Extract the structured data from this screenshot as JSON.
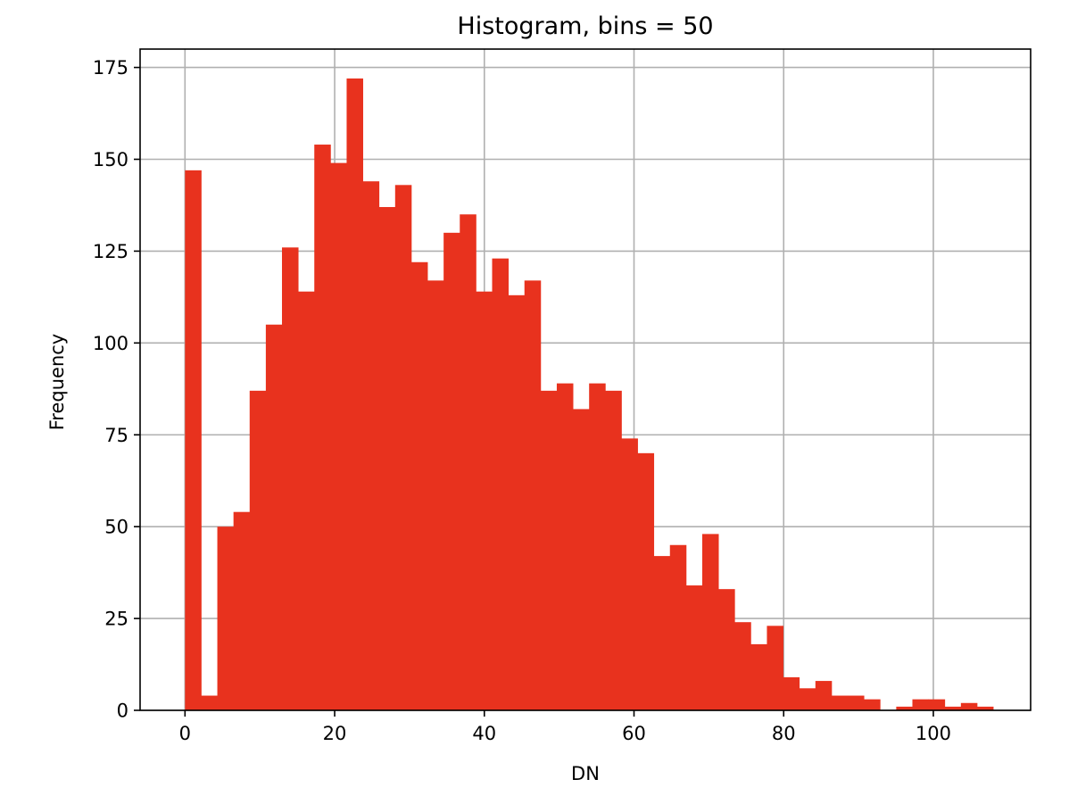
{
  "chart_data": {
    "type": "bar",
    "title": "Histogram, bins = 50",
    "xlabel": "DN",
    "ylabel": "Frequency",
    "xlim": [
      -6,
      113
    ],
    "ylim": [
      0,
      180
    ],
    "grid": true,
    "bar_color": "#e8321e",
    "bin_start": 0,
    "bin_width": 2.16,
    "xticks": [
      0,
      20,
      40,
      60,
      80,
      100
    ],
    "yticks": [
      0,
      25,
      50,
      75,
      100,
      125,
      150,
      175
    ],
    "counts": [
      147,
      4,
      50,
      54,
      87,
      105,
      126,
      114,
      154,
      149,
      172,
      144,
      137,
      143,
      122,
      117,
      130,
      135,
      114,
      123,
      113,
      117,
      87,
      89,
      82,
      89,
      87,
      74,
      70,
      42,
      45,
      34,
      48,
      33,
      24,
      18,
      23,
      9,
      6,
      8,
      4,
      4,
      3,
      0,
      1,
      3,
      3,
      1,
      2,
      1
    ]
  }
}
